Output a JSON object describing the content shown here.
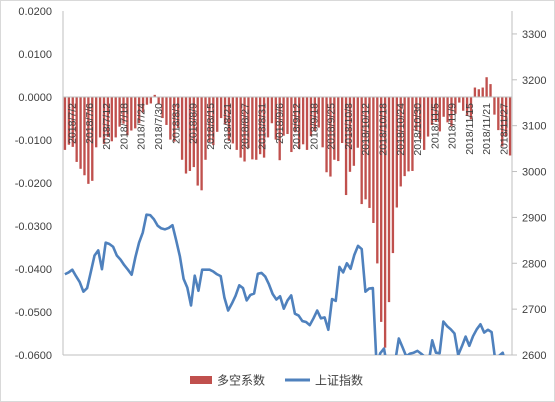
{
  "chart_data": {
    "type": "bar+line",
    "title": "",
    "left_axis": {
      "ticks": [
        "0.0200",
        "0.0100",
        "0.0000",
        "-0.0100",
        "-0.0200",
        "-0.0300",
        "-0.0400",
        "-0.0500",
        "-0.0600"
      ],
      "range": [
        -0.06,
        0.02
      ]
    },
    "right_axis": {
      "ticks": [
        "3300",
        "3200",
        "3100",
        "3000",
        "2900",
        "2800",
        "2700",
        "2600"
      ],
      "range": [
        2600,
        3350
      ]
    },
    "x_tick_labels": [
      "2018/7/2",
      "2018/7/6",
      "2018/7/12",
      "2018/7/18",
      "2018/7/24",
      "2018/7/30",
      "2018/8/3",
      "2018/8/9",
      "2018/8/15",
      "2018/8/21",
      "2018/8/27",
      "2018/8/31",
      "2018/9/6",
      "2018/9/12",
      "2018/9/18",
      "2018/9/25",
      "2018/10/8",
      "2018/10/12",
      "2018/10/18",
      "2018/10/24",
      "2018/10/30",
      "2018/11/5",
      "2018/11/9",
      "2018/11/15",
      "2018/11/21",
      "2018/11/27"
    ],
    "legend": [
      {
        "name": "多空系数",
        "color": "#C0504D",
        "kind": "bar"
      },
      {
        "name": "上证指数",
        "color": "#4F81BD",
        "kind": "line"
      }
    ],
    "series": [
      {
        "name": "多空系数",
        "type": "bar",
        "axis": "left",
        "color": "#C0504D",
        "values": [
          -0.0123,
          -0.0111,
          -0.0116,
          -0.0151,
          -0.0167,
          -0.0182,
          -0.0202,
          -0.0195,
          -0.0117,
          -0.0094,
          -0.0109,
          -0.0093,
          -0.0103,
          -0.0094,
          -0.0069,
          -0.0062,
          -0.0089,
          -0.0078,
          -0.0073,
          -0.0061,
          -0.0036,
          -0.0018,
          -0.0015,
          0.0005,
          -0.0016,
          -0.0049,
          -0.0065,
          -0.0099,
          -0.0104,
          -0.0072,
          -0.0146,
          -0.0178,
          -0.0172,
          -0.0163,
          -0.0206,
          -0.0217,
          -0.0146,
          -0.0105,
          -0.0112,
          -0.0081,
          -0.0049,
          -0.0064,
          -0.0102,
          -0.0108,
          -0.0123,
          -0.0141,
          -0.015,
          -0.0119,
          -0.0145,
          -0.0146,
          -0.0133,
          -0.0141,
          -0.0094,
          -0.0061,
          -0.0099,
          -0.0147,
          -0.009,
          -0.0086,
          -0.0128,
          -0.0082,
          -0.0121,
          -0.011,
          -0.0123,
          -0.0091,
          -0.0079,
          -0.0071,
          -0.0117,
          -0.0175,
          -0.0185,
          -0.0146,
          -0.0149,
          -0.0107,
          -0.0228,
          -0.0174,
          -0.016,
          -0.0118,
          -0.0249,
          -0.0238,
          -0.0258,
          -0.0293,
          -0.0387,
          -0.0523,
          -0.0583,
          -0.0477,
          -0.0363,
          -0.0257,
          -0.0208,
          -0.0184,
          -0.0173,
          -0.0172,
          -0.0079,
          -0.0098,
          -0.0123,
          -0.0092,
          -0.0065,
          -0.0058,
          -0.008,
          -0.0046,
          -0.0059,
          -0.0068,
          -0.0039,
          -0.0013,
          -0.0032,
          -0.0044,
          -0.0052,
          0.0022,
          0.0018,
          0.0022,
          0.0046,
          0.003,
          -0.0041,
          -0.0077,
          -0.0115,
          -0.0092,
          -0.0136
        ]
      },
      {
        "name": "上证指数",
        "type": "line",
        "axis": "right",
        "color": "#4F81BD",
        "values": [
          2776,
          2780,
          2786,
          2772,
          2759,
          2738,
          2746,
          2781,
          2817,
          2828,
          2787,
          2845,
          2842,
          2836,
          2817,
          2808,
          2796,
          2786,
          2775,
          2813,
          2845,
          2867,
          2906,
          2905,
          2896,
          2882,
          2876,
          2874,
          2877,
          2883,
          2850,
          2815,
          2766,
          2747,
          2708,
          2773,
          2740,
          2786,
          2786,
          2786,
          2782,
          2776,
          2772,
          2725,
          2697,
          2712,
          2729,
          2752,
          2746,
          2719,
          2731,
          2734,
          2777,
          2779,
          2771,
          2754,
          2733,
          2721,
          2728,
          2701,
          2719,
          2730,
          2690,
          2686,
          2674,
          2672,
          2665,
          2680,
          2697,
          2680,
          2682,
          2655,
          2722,
          2718,
          2792,
          2780,
          2800,
          2788,
          2818,
          2838,
          2831,
          2738,
          2745,
          2746,
          2578,
          2604,
          2614,
          2569,
          2544,
          2585,
          2636,
          2617,
          2597,
          2603,
          2605,
          2609,
          2603,
          2596,
          2582,
          2632,
          2605,
          2604,
          2673,
          2663,
          2656,
          2647,
          2600,
          2619,
          2640,
          2620,
          2641,
          2656,
          2667,
          2649,
          2655,
          2650,
          2588,
          2598,
          2605,
          2574,
          2596
        ]
      }
    ]
  }
}
